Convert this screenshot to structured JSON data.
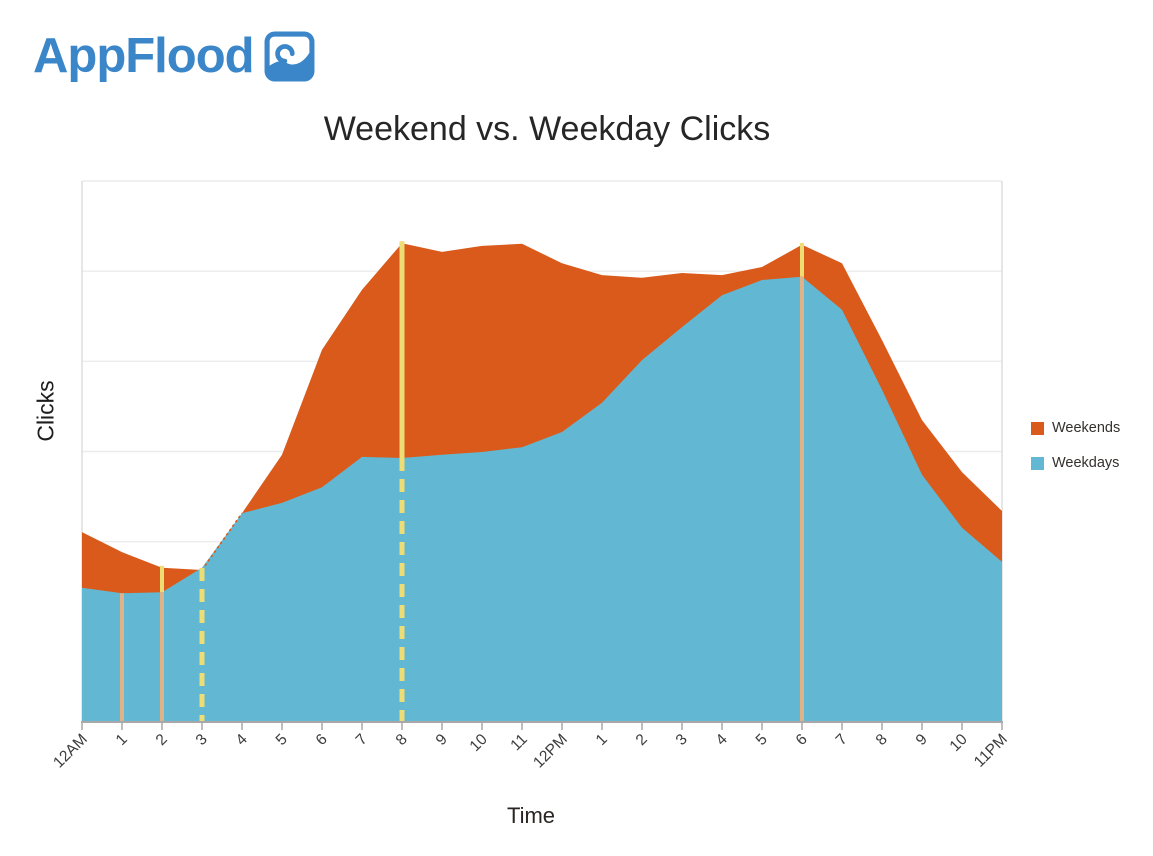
{
  "brand": {
    "name": "AppFlood",
    "logo_color": "#3a86c8",
    "logo_icon": "wave-icon"
  },
  "chart_data": {
    "type": "area",
    "title": "Weekend vs. Weekday Clicks",
    "xlabel": "Time",
    "ylabel": "Clicks",
    "x": [
      "12AM",
      "1",
      "2",
      "3",
      "4",
      "5",
      "6",
      "7",
      "8",
      "9",
      "10",
      "11",
      "12PM",
      "1",
      "2",
      "3",
      "4",
      "5",
      "6",
      "7",
      "8",
      "9",
      "10",
      "11PM"
    ],
    "series": [
      {
        "name": "Weekends",
        "color": "#da5a1b",
        "values": [
          35.1,
          31.4,
          28.5,
          28.1,
          38.6,
          49.4,
          68.8,
          79.9,
          88.5,
          86.9,
          88.0,
          88.4,
          84.8,
          82.6,
          82.1,
          83.0,
          82.6,
          84.1,
          88.2,
          84.8,
          70.6,
          55.8,
          46.2,
          39.0
        ]
      },
      {
        "name": "Weekdays",
        "color": "#62b8d2",
        "values": [
          24.8,
          23.8,
          24.0,
          28.5,
          38.6,
          40.5,
          43.4,
          49.0,
          48.8,
          49.4,
          49.9,
          50.8,
          53.6,
          59.0,
          66.9,
          73.0,
          78.9,
          81.7,
          82.3,
          76.2,
          61.4,
          45.7,
          35.9,
          29.6
        ]
      }
    ],
    "ylim": [
      0,
      100
    ],
    "y_tick_labels": [],
    "grid": "horizontal",
    "legend_position": "right",
    "overlap_dash": {
      "series": "Weekends",
      "from_hour_index": 3,
      "to_hour_index": 4
    },
    "annotations": [
      {
        "hour_index": 1,
        "segments": [
          {
            "from": "weekdays",
            "to": "axis",
            "color": "#dfb289",
            "dash": false,
            "width": 4
          }
        ]
      },
      {
        "hour_index": 2,
        "segments": [
          {
            "from": "weekends",
            "to": "weekdays",
            "color": "#eedc74",
            "dash": false,
            "width": 4
          },
          {
            "from": "weekdays",
            "to": "axis",
            "color": "#dfb289",
            "dash": false,
            "width": 4
          }
        ]
      },
      {
        "hour_index": 3,
        "segments": [
          {
            "from": "weekends",
            "to": "axis",
            "color": "#eedc74",
            "dash": true,
            "width": 5
          }
        ]
      },
      {
        "hour_index": 8,
        "segments": [
          {
            "from": "weekends",
            "to": "weekdays",
            "color": "#eedc74",
            "dash": false,
            "width": 5
          },
          {
            "from": "weekdays",
            "to": "axis",
            "color": "#eedc74",
            "dash": true,
            "width": 5
          }
        ]
      },
      {
        "hour_index": 18,
        "segments": [
          {
            "from": "weekends",
            "to": "weekdays",
            "color": "#eedc74",
            "dash": false,
            "width": 4
          },
          {
            "from": "weekdays",
            "to": "axis",
            "color": "#dfb289",
            "dash": false,
            "width": 4
          }
        ]
      }
    ]
  },
  "chart_style": {
    "grid_color": "#ececec",
    "plot_border_color": "#dcdcdc",
    "axis_color": "#a8a8a8",
    "tick_label_color": "#3c3c3c",
    "title_color": "#262626"
  }
}
